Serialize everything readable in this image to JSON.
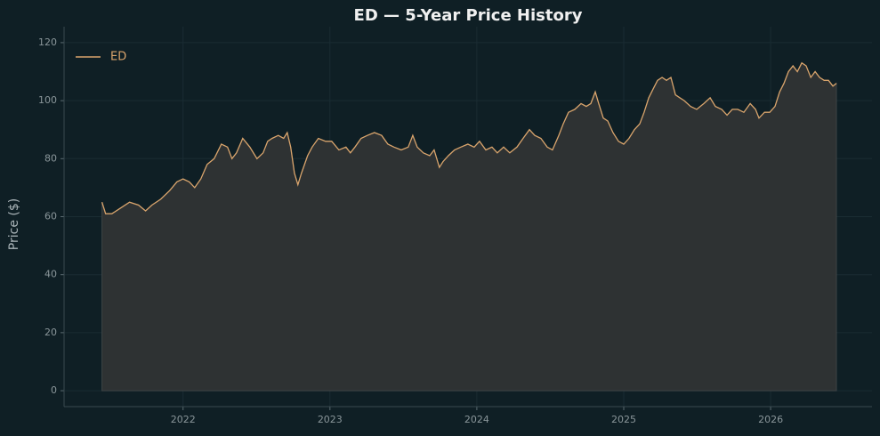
{
  "chart_data": {
    "type": "line",
    "title": "ED — 5-Year Price History",
    "y_label": "Price ($)",
    "x": [
      2021.448,
      2021.473,
      2021.515,
      2021.576,
      2021.636,
      2021.697,
      2021.745,
      2021.788,
      2021.848,
      2021.909,
      2021.958,
      2022.0,
      2022.042,
      2022.079,
      2022.121,
      2022.164,
      2022.212,
      2022.261,
      2022.303,
      2022.333,
      2022.364,
      2022.406,
      2022.455,
      2022.503,
      2022.545,
      2022.576,
      2022.606,
      2022.648,
      2022.685,
      2022.709,
      2022.733,
      2022.758,
      2022.782,
      2022.806,
      2022.848,
      2022.879,
      2022.921,
      2022.97,
      2023.012,
      2023.061,
      2023.109,
      2023.139,
      2023.17,
      2023.212,
      2023.255,
      2023.303,
      2023.352,
      2023.394,
      2023.436,
      2023.485,
      2023.533,
      2023.564,
      2023.594,
      2023.636,
      2023.679,
      2023.709,
      2023.745,
      2023.77,
      2023.806,
      2023.848,
      2023.891,
      2023.939,
      2023.982,
      2024.018,
      2024.061,
      2024.103,
      2024.139,
      2024.182,
      2024.224,
      2024.273,
      2024.315,
      2024.358,
      2024.394,
      2024.436,
      2024.479,
      2024.515,
      2024.558,
      2024.588,
      2024.624,
      2024.667,
      2024.709,
      2024.745,
      2024.776,
      2024.806,
      2024.83,
      2024.861,
      2024.891,
      2024.927,
      2024.964,
      2025.0,
      2025.036,
      2025.073,
      2025.109,
      2025.139,
      2025.17,
      2025.2,
      2025.23,
      2025.261,
      2025.291,
      2025.321,
      2025.352,
      2025.382,
      2025.412,
      2025.455,
      2025.497,
      2025.545,
      2025.588,
      2025.624,
      2025.667,
      2025.703,
      2025.739,
      2025.776,
      2025.818,
      2025.861,
      2025.897,
      2025.921,
      2025.958,
      2025.994,
      2026.03,
      2026.061,
      2026.091,
      2026.121,
      2026.152,
      2026.182,
      2026.212,
      2026.242,
      2026.273,
      2026.303,
      2026.333,
      2026.364,
      2026.394,
      2026.424,
      2026.448
    ],
    "series": [
      {
        "name": "ED",
        "color": "#d9a46c",
        "fill": "#2e3233",
        "values": [
          65,
          61,
          61,
          63,
          65,
          64,
          62,
          64,
          66,
          69,
          72,
          73,
          72,
          70,
          73,
          78,
          80,
          85,
          84,
          80,
          82,
          87,
          84,
          80,
          82,
          86,
          87,
          88,
          87,
          89,
          84,
          75,
          71,
          75,
          81,
          84,
          87,
          86,
          86,
          83,
          84,
          82,
          84,
          87,
          88,
          89,
          88,
          85,
          84,
          83,
          84,
          88,
          84,
          82,
          81,
          83,
          77,
          79,
          81,
          83,
          84,
          85,
          84,
          86,
          83,
          84,
          82,
          84,
          82,
          84,
          87,
          90,
          88,
          87,
          84,
          83,
          88,
          92,
          96,
          97,
          99,
          98,
          99,
          103,
          99,
          94,
          93,
          89,
          86,
          85,
          87,
          90,
          92,
          96,
          101,
          104,
          107,
          108,
          107,
          108,
          102,
          101,
          100,
          98,
          97,
          99,
          101,
          98,
          97,
          95,
          97,
          97,
          96,
          99,
          97,
          94,
          96,
          96,
          98,
          103,
          106,
          110,
          112,
          110,
          113,
          112,
          108,
          110,
          108,
          107,
          107,
          105,
          106
        ]
      }
    ],
    "xlim": [
      2021.19,
      2026.69
    ],
    "xticks": [
      2022,
      2023,
      2024,
      2025,
      2026
    ],
    "ylim": [
      -5.5,
      125.5
    ],
    "yticks": [
      0,
      20,
      40,
      60,
      80,
      100,
      120
    ],
    "grid": true,
    "legend": "upper left"
  }
}
